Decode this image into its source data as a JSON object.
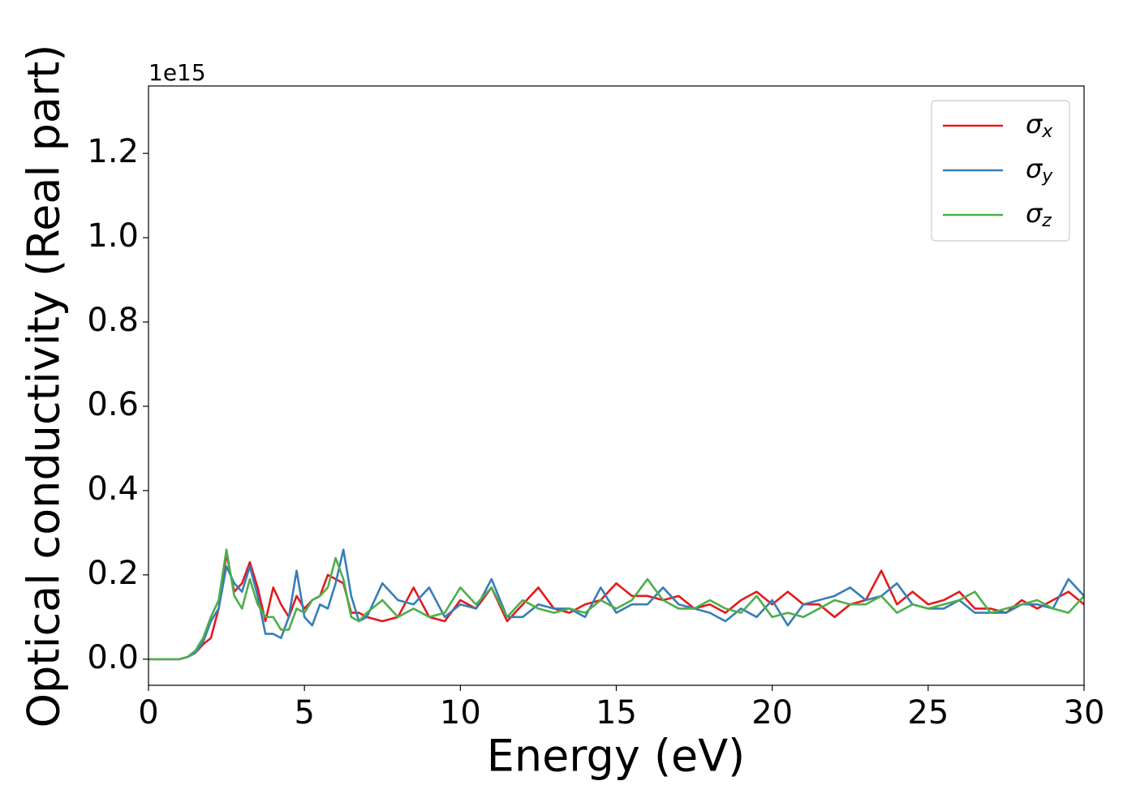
{
  "chart_data": {
    "type": "line",
    "xlabel": "Energy (eV)",
    "ylabel": "Optical conductivity (Real part)",
    "y_offset_label": "1e15",
    "legend": "upper right",
    "grid": false,
    "xlim": [
      0,
      30
    ],
    "ylim": [
      -0.062,
      1.36
    ],
    "xticks": [
      0,
      5,
      10,
      15,
      20,
      25,
      30
    ],
    "yticks": [
      {
        "value": 0,
        "label": "0.0"
      },
      0.2,
      0.4,
      0.6,
      0.8,
      {
        "value": 1,
        "label": "1.0"
      },
      1.2
    ],
    "x": [
      0,
      0.25,
      0.5,
      0.75,
      1,
      1.25,
      1.5,
      1.75,
      2,
      2.25,
      2.5,
      2.75,
      3,
      3.25,
      3.5,
      3.75,
      4,
      4.25,
      4.5,
      4.75,
      5,
      5.25,
      5.5,
      5.75,
      6,
      6.25,
      6.5,
      6.75,
      7,
      7.5,
      8,
      8.5,
      9,
      9.5,
      10,
      10.5,
      11,
      11.5,
      12,
      12.5,
      13,
      13.5,
      14,
      14.5,
      15,
      15.5,
      16,
      16.5,
      17,
      17.5,
      18,
      18.5,
      19,
      19.5,
      20,
      20.5,
      21,
      21.5,
      22,
      22.5,
      23,
      23.5,
      24,
      24.5,
      25,
      25.5,
      26,
      26.5,
      27,
      27.5,
      28,
      28.5,
      29,
      29.5,
      30
    ],
    "series": [
      {
        "name": "σx",
        "color": "#e41a1c",
        "values": [
          0,
          0,
          0,
          0,
          0,
          0.005,
          0.015,
          0.035,
          0.05,
          0.12,
          0.25,
          0.16,
          0.18,
          0.23,
          0.17,
          0.09,
          0.17,
          0.13,
          0.1,
          0.15,
          0.12,
          0.14,
          0.15,
          0.2,
          0.19,
          0.18,
          0.11,
          0.11,
          0.1,
          0.09,
          0.1,
          0.17,
          0.1,
          0.09,
          0.14,
          0.12,
          0.17,
          0.09,
          0.13,
          0.17,
          0.12,
          0.11,
          0.13,
          0.14,
          0.18,
          0.15,
          0.15,
          0.14,
          0.15,
          0.12,
          0.13,
          0.11,
          0.14,
          0.16,
          0.13,
          0.16,
          0.13,
          0.13,
          0.1,
          0.13,
          0.14,
          0.21,
          0.13,
          0.16,
          0.13,
          0.14,
          0.16,
          0.12,
          0.12,
          0.11,
          0.14,
          0.12,
          0.14,
          0.16,
          0.13
        ]
      },
      {
        "name": "σy",
        "color": "#377eb8",
        "values": [
          0,
          0,
          0,
          0,
          0,
          0.005,
          0.015,
          0.04,
          0.09,
          0.12,
          0.22,
          0.18,
          0.16,
          0.22,
          0.15,
          0.06,
          0.06,
          0.05,
          0.1,
          0.21,
          0.1,
          0.08,
          0.13,
          0.12,
          0.18,
          0.26,
          0.15,
          0.09,
          0.1,
          0.18,
          0.14,
          0.13,
          0.17,
          0.1,
          0.13,
          0.12,
          0.19,
          0.1,
          0.1,
          0.13,
          0.12,
          0.12,
          0.1,
          0.17,
          0.11,
          0.13,
          0.13,
          0.17,
          0.13,
          0.12,
          0.11,
          0.09,
          0.12,
          0.1,
          0.14,
          0.08,
          0.13,
          0.14,
          0.15,
          0.17,
          0.14,
          0.15,
          0.18,
          0.13,
          0.12,
          0.12,
          0.14,
          0.11,
          0.11,
          0.11,
          0.13,
          0.13,
          0.12,
          0.19,
          0.15
        ]
      },
      {
        "name": "σz",
        "color": "#4daf4a",
        "values": [
          0,
          0,
          0,
          0,
          0,
          0.005,
          0.02,
          0.05,
          0.1,
          0.14,
          0.26,
          0.15,
          0.12,
          0.19,
          0.13,
          0.1,
          0.1,
          0.07,
          0.07,
          0.12,
          0.11,
          0.14,
          0.15,
          0.17,
          0.24,
          0.19,
          0.1,
          0.09,
          0.11,
          0.14,
          0.1,
          0.12,
          0.1,
          0.11,
          0.17,
          0.13,
          0.17,
          0.1,
          0.14,
          0.12,
          0.11,
          0.12,
          0.11,
          0.14,
          0.12,
          0.14,
          0.19,
          0.14,
          0.12,
          0.12,
          0.14,
          0.12,
          0.11,
          0.15,
          0.1,
          0.11,
          0.1,
          0.12,
          0.14,
          0.13,
          0.13,
          0.15,
          0.11,
          0.13,
          0.12,
          0.13,
          0.14,
          0.16,
          0.11,
          0.12,
          0.13,
          0.14,
          0.12,
          0.11,
          0.15
        ]
      }
    ]
  }
}
